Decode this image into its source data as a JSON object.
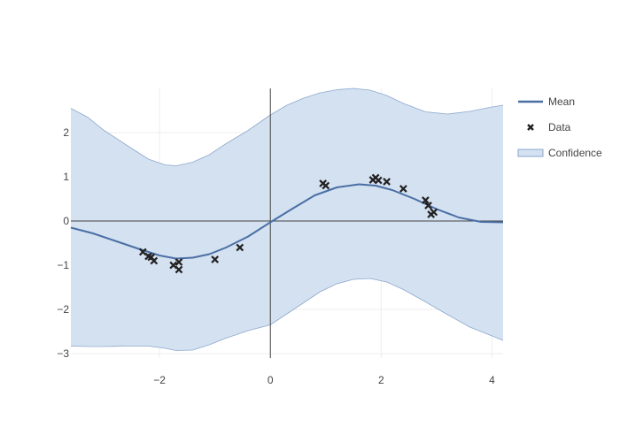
{
  "chart_data": {
    "type": "line",
    "title": "",
    "xlabel": "",
    "ylabel": "",
    "xlim": [
      -3.6,
      4.2
    ],
    "ylim": [
      -3.1,
      3.0
    ],
    "xticks": [
      -2,
      0,
      2,
      4
    ],
    "yticks": [
      -3,
      -2,
      -1,
      0,
      1,
      2
    ],
    "grid": true,
    "legend_position": "top-right",
    "colors": {
      "mean": "#4a6fa5",
      "band_fill": "#d4e1f1",
      "band_edge": "#8da8cc",
      "data": "#222222",
      "zero_line": "#444444",
      "grid": "#eeeeee"
    },
    "series": [
      {
        "name": "Mean",
        "kind": "line",
        "x": [
          -3.6,
          -3.2,
          -2.8,
          -2.4,
          -2.0,
          -1.7,
          -1.4,
          -1.1,
          -0.8,
          -0.4,
          0.0,
          0.4,
          0.8,
          1.2,
          1.6,
          1.9,
          2.2,
          2.6,
          3.0,
          3.4,
          3.8,
          4.2
        ],
        "y": [
          -0.15,
          -0.28,
          -0.45,
          -0.62,
          -0.78,
          -0.85,
          -0.83,
          -0.75,
          -0.6,
          -0.35,
          -0.03,
          0.28,
          0.58,
          0.76,
          0.83,
          0.8,
          0.7,
          0.5,
          0.27,
          0.08,
          -0.02,
          -0.03
        ]
      },
      {
        "name": "Data",
        "kind": "scatter",
        "points": [
          [
            -2.3,
            -0.7
          ],
          [
            -2.2,
            -0.8
          ],
          [
            -2.15,
            -0.82
          ],
          [
            -2.1,
            -0.9
          ],
          [
            -1.75,
            -1.0
          ],
          [
            -1.65,
            -0.93
          ],
          [
            -1.65,
            -1.1
          ],
          [
            -1.0,
            -0.87
          ],
          [
            -0.55,
            -0.6
          ],
          [
            0.95,
            0.85
          ],
          [
            1.0,
            0.8
          ],
          [
            1.85,
            0.93
          ],
          [
            1.9,
            0.98
          ],
          [
            1.95,
            0.92
          ],
          [
            2.1,
            0.89
          ],
          [
            2.4,
            0.73
          ],
          [
            2.8,
            0.47
          ],
          [
            2.85,
            0.35
          ],
          [
            2.9,
            0.15
          ],
          [
            2.95,
            0.2
          ]
        ]
      },
      {
        "name": "Confidence",
        "kind": "band",
        "x": [
          -3.6,
          -3.3,
          -3.0,
          -2.6,
          -2.2,
          -1.9,
          -1.7,
          -1.4,
          -1.1,
          -0.8,
          -0.4,
          0.0,
          0.3,
          0.6,
          0.9,
          1.2,
          1.5,
          1.8,
          2.1,
          2.4,
          2.8,
          3.2,
          3.6,
          4.0,
          4.2
        ],
        "upper": [
          2.55,
          2.35,
          2.05,
          1.72,
          1.4,
          1.27,
          1.25,
          1.33,
          1.5,
          1.75,
          2.05,
          2.4,
          2.62,
          2.78,
          2.9,
          2.97,
          3.0,
          2.96,
          2.84,
          2.66,
          2.47,
          2.42,
          2.48,
          2.58,
          2.62
        ],
        "lower": [
          -2.83,
          -2.84,
          -2.84,
          -2.83,
          -2.83,
          -2.88,
          -2.93,
          -2.92,
          -2.8,
          -2.65,
          -2.48,
          -2.35,
          -2.1,
          -1.85,
          -1.6,
          -1.42,
          -1.32,
          -1.3,
          -1.38,
          -1.55,
          -1.83,
          -2.12,
          -2.4,
          -2.6,
          -2.7
        ]
      }
    ]
  }
}
